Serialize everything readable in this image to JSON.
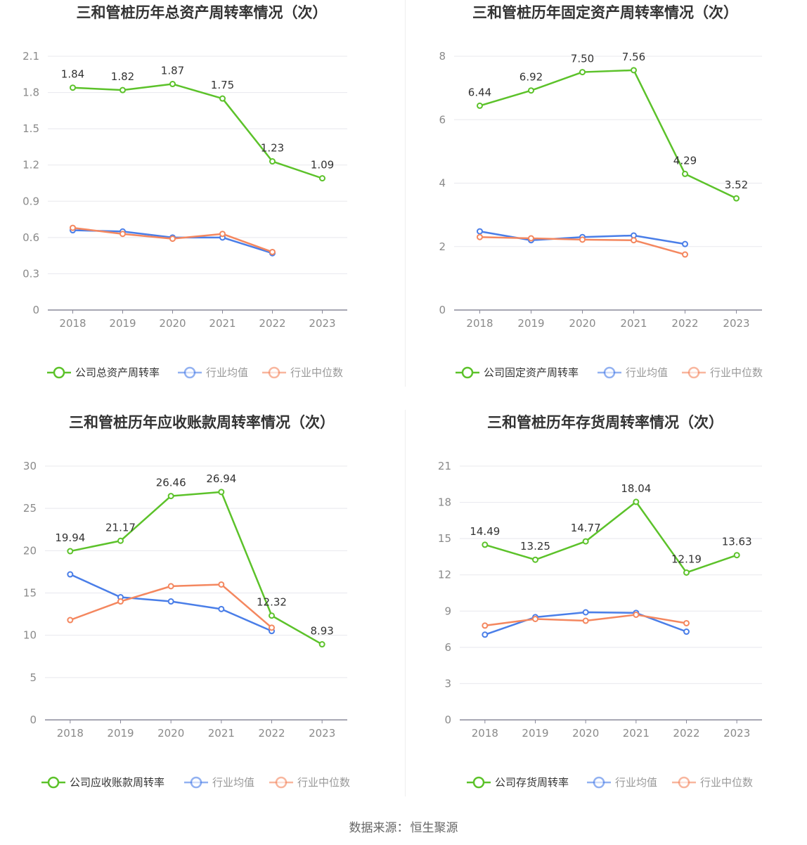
{
  "charts": [
    {
      "title": "三和管桩历年总资产周转率情况（次）",
      "chart_data": {
        "type": "line",
        "categories": [
          "2018",
          "2019",
          "2020",
          "2021",
          "2022",
          "2023"
        ],
        "yticks": [
          "0",
          "0.3",
          "0.6",
          "0.9",
          "1.2",
          "1.5",
          "1.8",
          "2.1"
        ],
        "ylim": [
          0,
          2.1
        ],
        "series": [
          {
            "name": "公司总资产周转率",
            "color": "#5cc22a",
            "values": [
              1.84,
              1.82,
              1.87,
              1.75,
              1.23,
              1.09
            ],
            "labels": [
              "1.84",
              "1.82",
              "1.87",
              "1.75",
              "1.23",
              "1.09"
            ]
          },
          {
            "name": "行业均值",
            "color": "#4a7ee8",
            "values": [
              0.66,
              0.65,
              0.6,
              0.6,
              0.47,
              null
            ]
          },
          {
            "name": "行业中位数",
            "color": "#f4875f",
            "values": [
              0.68,
              0.63,
              0.59,
              0.63,
              0.48,
              null
            ]
          }
        ]
      }
    },
    {
      "title": "三和管桩历年固定资产周转率情况（次）",
      "chart_data": {
        "type": "line",
        "categories": [
          "2018",
          "2019",
          "2020",
          "2021",
          "2022",
          "2023"
        ],
        "yticks": [
          "0",
          "2",
          "4",
          "6",
          "8"
        ],
        "ylim": [
          0,
          8
        ],
        "series": [
          {
            "name": "公司固定资产周转率",
            "color": "#5cc22a",
            "values": [
              6.44,
              6.92,
              7.5,
              7.56,
              4.29,
              3.52
            ],
            "labels": [
              "6.44",
              "6.92",
              "7.50",
              "7.56",
              "4.29",
              "3.52"
            ]
          },
          {
            "name": "行业均值",
            "color": "#4a7ee8",
            "values": [
              2.48,
              2.2,
              2.3,
              2.35,
              2.08,
              null
            ]
          },
          {
            "name": "行业中位数",
            "color": "#f4875f",
            "values": [
              2.3,
              2.26,
              2.22,
              2.2,
              1.75,
              null
            ]
          }
        ]
      }
    },
    {
      "title": "三和管桩历年应收账款周转率情况（次）",
      "chart_data": {
        "type": "line",
        "categories": [
          "2018",
          "2019",
          "2020",
          "2021",
          "2022",
          "2023"
        ],
        "yticks": [
          "0",
          "5",
          "10",
          "15",
          "20",
          "25",
          "30"
        ],
        "ylim": [
          0,
          30
        ],
        "series": [
          {
            "name": "公司应收账款周转率",
            "color": "#5cc22a",
            "values": [
              19.94,
              21.17,
              26.46,
              26.94,
              12.32,
              8.93
            ],
            "labels": [
              "19.94",
              "21.17",
              "26.46",
              "26.94",
              "12.32",
              "8.93"
            ]
          },
          {
            "name": "行业均值",
            "color": "#4a7ee8",
            "values": [
              17.2,
              14.5,
              14.0,
              13.1,
              10.5,
              null
            ]
          },
          {
            "name": "行业中位数",
            "color": "#f4875f",
            "values": [
              11.8,
              14.0,
              15.8,
              16.0,
              10.9,
              null
            ]
          }
        ]
      }
    },
    {
      "title": "三和管桩历年存货周转率情况（次）",
      "chart_data": {
        "type": "line",
        "categories": [
          "2018",
          "2019",
          "2020",
          "2021",
          "2022",
          "2023"
        ],
        "yticks": [
          "0",
          "3",
          "6",
          "9",
          "12",
          "15",
          "18",
          "21"
        ],
        "ylim": [
          0,
          21
        ],
        "series": [
          {
            "name": "公司存货周转率",
            "color": "#5cc22a",
            "values": [
              14.49,
              13.25,
              14.77,
              18.04,
              12.19,
              13.63
            ],
            "labels": [
              "14.49",
              "13.25",
              "14.77",
              "18.04",
              "12.19",
              "13.63"
            ]
          },
          {
            "name": "行业均值",
            "color": "#4a7ee8",
            "values": [
              7.05,
              8.5,
              8.9,
              8.85,
              7.3,
              null
            ]
          },
          {
            "name": "行业中位数",
            "color": "#f4875f",
            "values": [
              7.8,
              8.35,
              8.2,
              8.7,
              8.0,
              null
            ]
          }
        ]
      }
    }
  ],
  "source": {
    "label": "数据来源：",
    "value": "恒生聚源"
  }
}
